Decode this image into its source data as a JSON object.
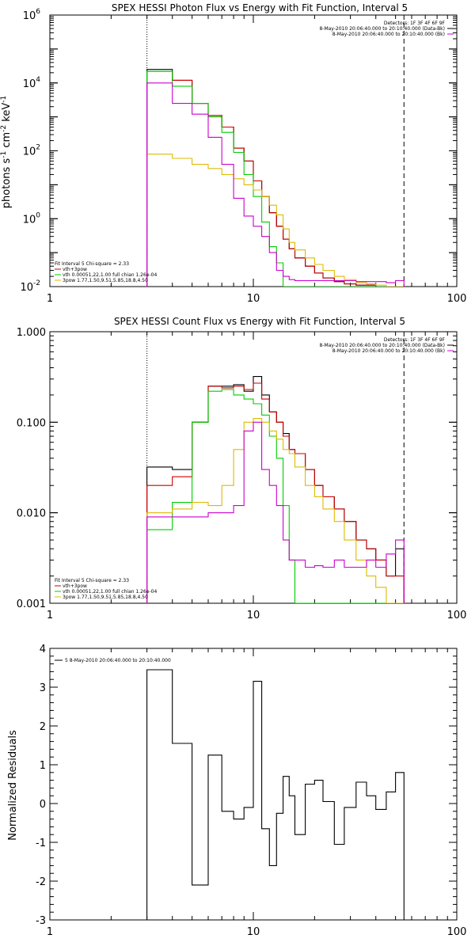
{
  "chart_data": [
    {
      "type": "line",
      "title": "SPEX HESSI Photon Flux vs Energy with Fit Function, Interval 5",
      "xlabel": "",
      "ylabel": "photons s",
      "ylabel_parts": [
        "-1",
        " cm",
        "-2",
        " keV",
        "-1"
      ],
      "xscale": "log",
      "yscale": "log",
      "xlim": [
        1,
        100
      ],
      "ylim": [
        0.01,
        1000000
      ],
      "x_ticks": [
        "1",
        "10",
        "100"
      ],
      "y_ticks": [
        {
          "base": "10",
          "exp": "-2"
        },
        {
          "base": "10",
          "exp": "0"
        },
        {
          "base": "10",
          "exp": "2"
        },
        {
          "base": "10",
          "exp": "4"
        },
        {
          "base": "10",
          "exp": "6"
        }
      ],
      "vlines": {
        "dotted": 3,
        "dashed": 55
      },
      "legend_top": [
        {
          "text": "Detectors: 1F 3F 4F 6F 9F",
          "color": "#000000"
        },
        {
          "text": "8-May-2010 20:06:40.000 to 20:10:40.000 (Data-Bk)",
          "color": "#000000"
        },
        {
          "text": "8-May-2010 20:06:40.000 to 20:10:40.000 (Bk)",
          "color": "#cc00cc"
        }
      ],
      "legend_bottom": [
        {
          "text": "Fit Interval 5   Chi-square = 2.33",
          "color": "#000000"
        },
        {
          "text": "vth+3pow",
          "color": "#cc0000"
        },
        {
          "text": "vth 0.00051,22,1.00  full chian 1.26e-04",
          "color": "#00cc00"
        },
        {
          "text": "3pow 1.77,1.50,9.51,5.85,18.8,4.50",
          "color": "#ddbb00"
        }
      ],
      "edges": [
        3,
        4,
        5,
        6,
        7,
        8,
        9,
        10,
        11,
        12,
        13,
        14,
        15,
        16,
        18,
        20,
        22,
        25,
        28,
        32,
        36,
        40,
        45,
        50,
        55
      ],
      "series": [
        {
          "name": "",
          "color": "#000000",
          "values": [
            25000,
            12000,
            2500,
            1100,
            500,
            120,
            50,
            13,
            4.5,
            1.5,
            0.6,
            0.25,
            0.13,
            0.07,
            0.04,
            0.025,
            0.018,
            0.014,
            0.012,
            0.011,
            0.011,
            0.01,
            0.01,
            0.01
          ]
        },
        {
          "name": "",
          "color": "#cc0000",
          "values": [
            22000,
            12000,
            2500,
            1100,
            500,
            120,
            50,
            13,
            4.5,
            1.5,
            0.6,
            0.25,
            0.13,
            0.07,
            0.04,
            0.025,
            0.018,
            0.014,
            0.012,
            0.011,
            0.011,
            0.01,
            0.01,
            0.01
          ]
        },
        {
          "name": "",
          "color": "#00cc00",
          "values": [
            22000,
            8000,
            2500,
            1000,
            350,
            90,
            20,
            4.5,
            0.8,
            0.15,
            0.05,
            0.01,
            0.01,
            0.01,
            0.01,
            0.01,
            0.01,
            0.01,
            0.01,
            0.01,
            0.01,
            0.01,
            0.01,
            0.01
          ]
        },
        {
          "name": "",
          "color": "#ddbb00",
          "values": [
            80,
            60,
            40,
            30,
            20,
            15,
            10,
            7,
            4.5,
            2.5,
            1.3,
            0.5,
            0.2,
            0.12,
            0.07,
            0.045,
            0.03,
            0.02,
            0.016,
            0.013,
            0.012,
            0.011,
            0.01,
            0.01
          ]
        },
        {
          "name": "",
          "color": "#cc00cc",
          "values": [
            10000,
            2500,
            1200,
            250,
            40,
            4,
            1.2,
            0.6,
            0.3,
            0.1,
            0.03,
            0.02,
            0.016,
            0.015,
            0.015,
            0.015,
            0.015,
            0.015,
            0.015,
            0.014,
            0.014,
            0.014,
            0.013,
            0.015
          ]
        }
      ]
    },
    {
      "type": "line",
      "title": "SPEX HESSI Count Flux vs Energy with Fit Function, Interval 5",
      "xlabel": "",
      "ylabel": "",
      "xscale": "log",
      "yscale": "log",
      "xlim": [
        1,
        100
      ],
      "ylim": [
        0.001,
        1
      ],
      "x_ticks": [
        "1",
        "10",
        "100"
      ],
      "y_ticks": [
        "0.001",
        "0.010",
        "0.100",
        "1.000"
      ],
      "vlines": {
        "dotted": 3,
        "dashed": 55
      },
      "legend_top": [
        {
          "text": "Detectors: 1F 3F 4F 6F 9F",
          "color": "#000000"
        },
        {
          "text": "8-May-2010 20:06:40.000 to 20:10:40.000 (Data-Bk)",
          "color": "#000000"
        },
        {
          "text": "8-May-2010 20:06:40.000 to 20:10:40.000 (Bk)",
          "color": "#cc00cc"
        }
      ],
      "legend_bottom": [
        {
          "text": "Fit Interval 5   Chi-square = 2.33",
          "color": "#000000"
        },
        {
          "text": "vth+3pow",
          "color": "#cc0000"
        },
        {
          "text": "vth 0.00051,22,1.00  full chian 1.26e-04",
          "color": "#00cc00"
        },
        {
          "text": "3pow 1.77,1.50,9.51,5.85,18.8,4.50",
          "color": "#ddbb00"
        }
      ],
      "edges": [
        3,
        4,
        5,
        6,
        7,
        8,
        9,
        10,
        11,
        12,
        13,
        14,
        15,
        16,
        18,
        20,
        22,
        25,
        28,
        32,
        36,
        40,
        45,
        50,
        55
      ],
      "series": [
        {
          "name": "",
          "color": "#000000",
          "values": [
            0.032,
            0.03,
            0.1,
            0.25,
            0.25,
            0.26,
            0.22,
            0.32,
            0.2,
            0.13,
            0.1,
            0.075,
            0.05,
            0.045,
            0.03,
            0.02,
            0.015,
            0.011,
            0.008,
            0.005,
            0.004,
            0.003,
            0.002,
            0.004
          ]
        },
        {
          "name": "",
          "color": "#cc0000",
          "values": [
            0.02,
            0.025,
            0.1,
            0.25,
            0.24,
            0.25,
            0.23,
            0.27,
            0.18,
            0.13,
            0.1,
            0.07,
            0.05,
            0.045,
            0.03,
            0.02,
            0.015,
            0.011,
            0.008,
            0.005,
            0.004,
            0.003,
            0.002,
            0.002
          ]
        },
        {
          "name": "",
          "color": "#00cc00",
          "values": [
            0.0065,
            0.013,
            0.1,
            0.22,
            0.23,
            0.2,
            0.18,
            0.16,
            0.12,
            0.07,
            0.04,
            0.012,
            0.003,
            0.001,
            0.001,
            0.001,
            0.001,
            0.001,
            0.001,
            0.001,
            0.001,
            0.001,
            0.001,
            0.001
          ]
        },
        {
          "name": "",
          "color": "#ddbb00",
          "values": [
            0.01,
            0.011,
            0.013,
            0.012,
            0.02,
            0.05,
            0.1,
            0.11,
            0.1,
            0.08,
            0.065,
            0.05,
            0.045,
            0.032,
            0.02,
            0.015,
            0.011,
            0.008,
            0.005,
            0.003,
            0.002,
            0.0015,
            0.001,
            0.001
          ]
        },
        {
          "name": "",
          "color": "#cc00cc",
          "values": [
            0.009,
            0.009,
            0.009,
            0.01,
            0.01,
            0.012,
            0.08,
            0.1,
            0.03,
            0.02,
            0.012,
            0.005,
            0.003,
            0.003,
            0.0025,
            0.0026,
            0.0025,
            0.003,
            0.0025,
            0.0025,
            0.003,
            0.0025,
            0.0035,
            0.005
          ]
        }
      ]
    },
    {
      "type": "line",
      "title": "",
      "xlabel": "",
      "ylabel": "Normalized Residuals",
      "xscale": "log",
      "yscale": "linear",
      "xlim": [
        1,
        100
      ],
      "ylim": [
        -3,
        4
      ],
      "x_ticks": [
        "1",
        "10",
        "100"
      ],
      "y_ticks": [
        "-3",
        "-2",
        "-1",
        "0",
        "1",
        "2",
        "3",
        "4"
      ],
      "legend": [
        {
          "text": "5  8-May-2010 20:06:40.000 to 20:10:40.000",
          "color": "#000000"
        }
      ],
      "edges": [
        3,
        4,
        5,
        6,
        7,
        8,
        9,
        10,
        11,
        12,
        13,
        14,
        15,
        16,
        18,
        20,
        22,
        25,
        28,
        32,
        36,
        40,
        45,
        50,
        55
      ],
      "series": [
        {
          "name": "",
          "color": "#000000",
          "values": [
            3.45,
            1.55,
            -2.1,
            1.25,
            -0.2,
            -0.4,
            -0.1,
            3.15,
            -0.65,
            -1.6,
            -0.25,
            0.7,
            0.2,
            -0.8,
            0.5,
            0.6,
            0.05,
            -1.05,
            -0.1,
            0.55,
            0.2,
            -0.15,
            0.3,
            0.8
          ]
        }
      ]
    }
  ]
}
